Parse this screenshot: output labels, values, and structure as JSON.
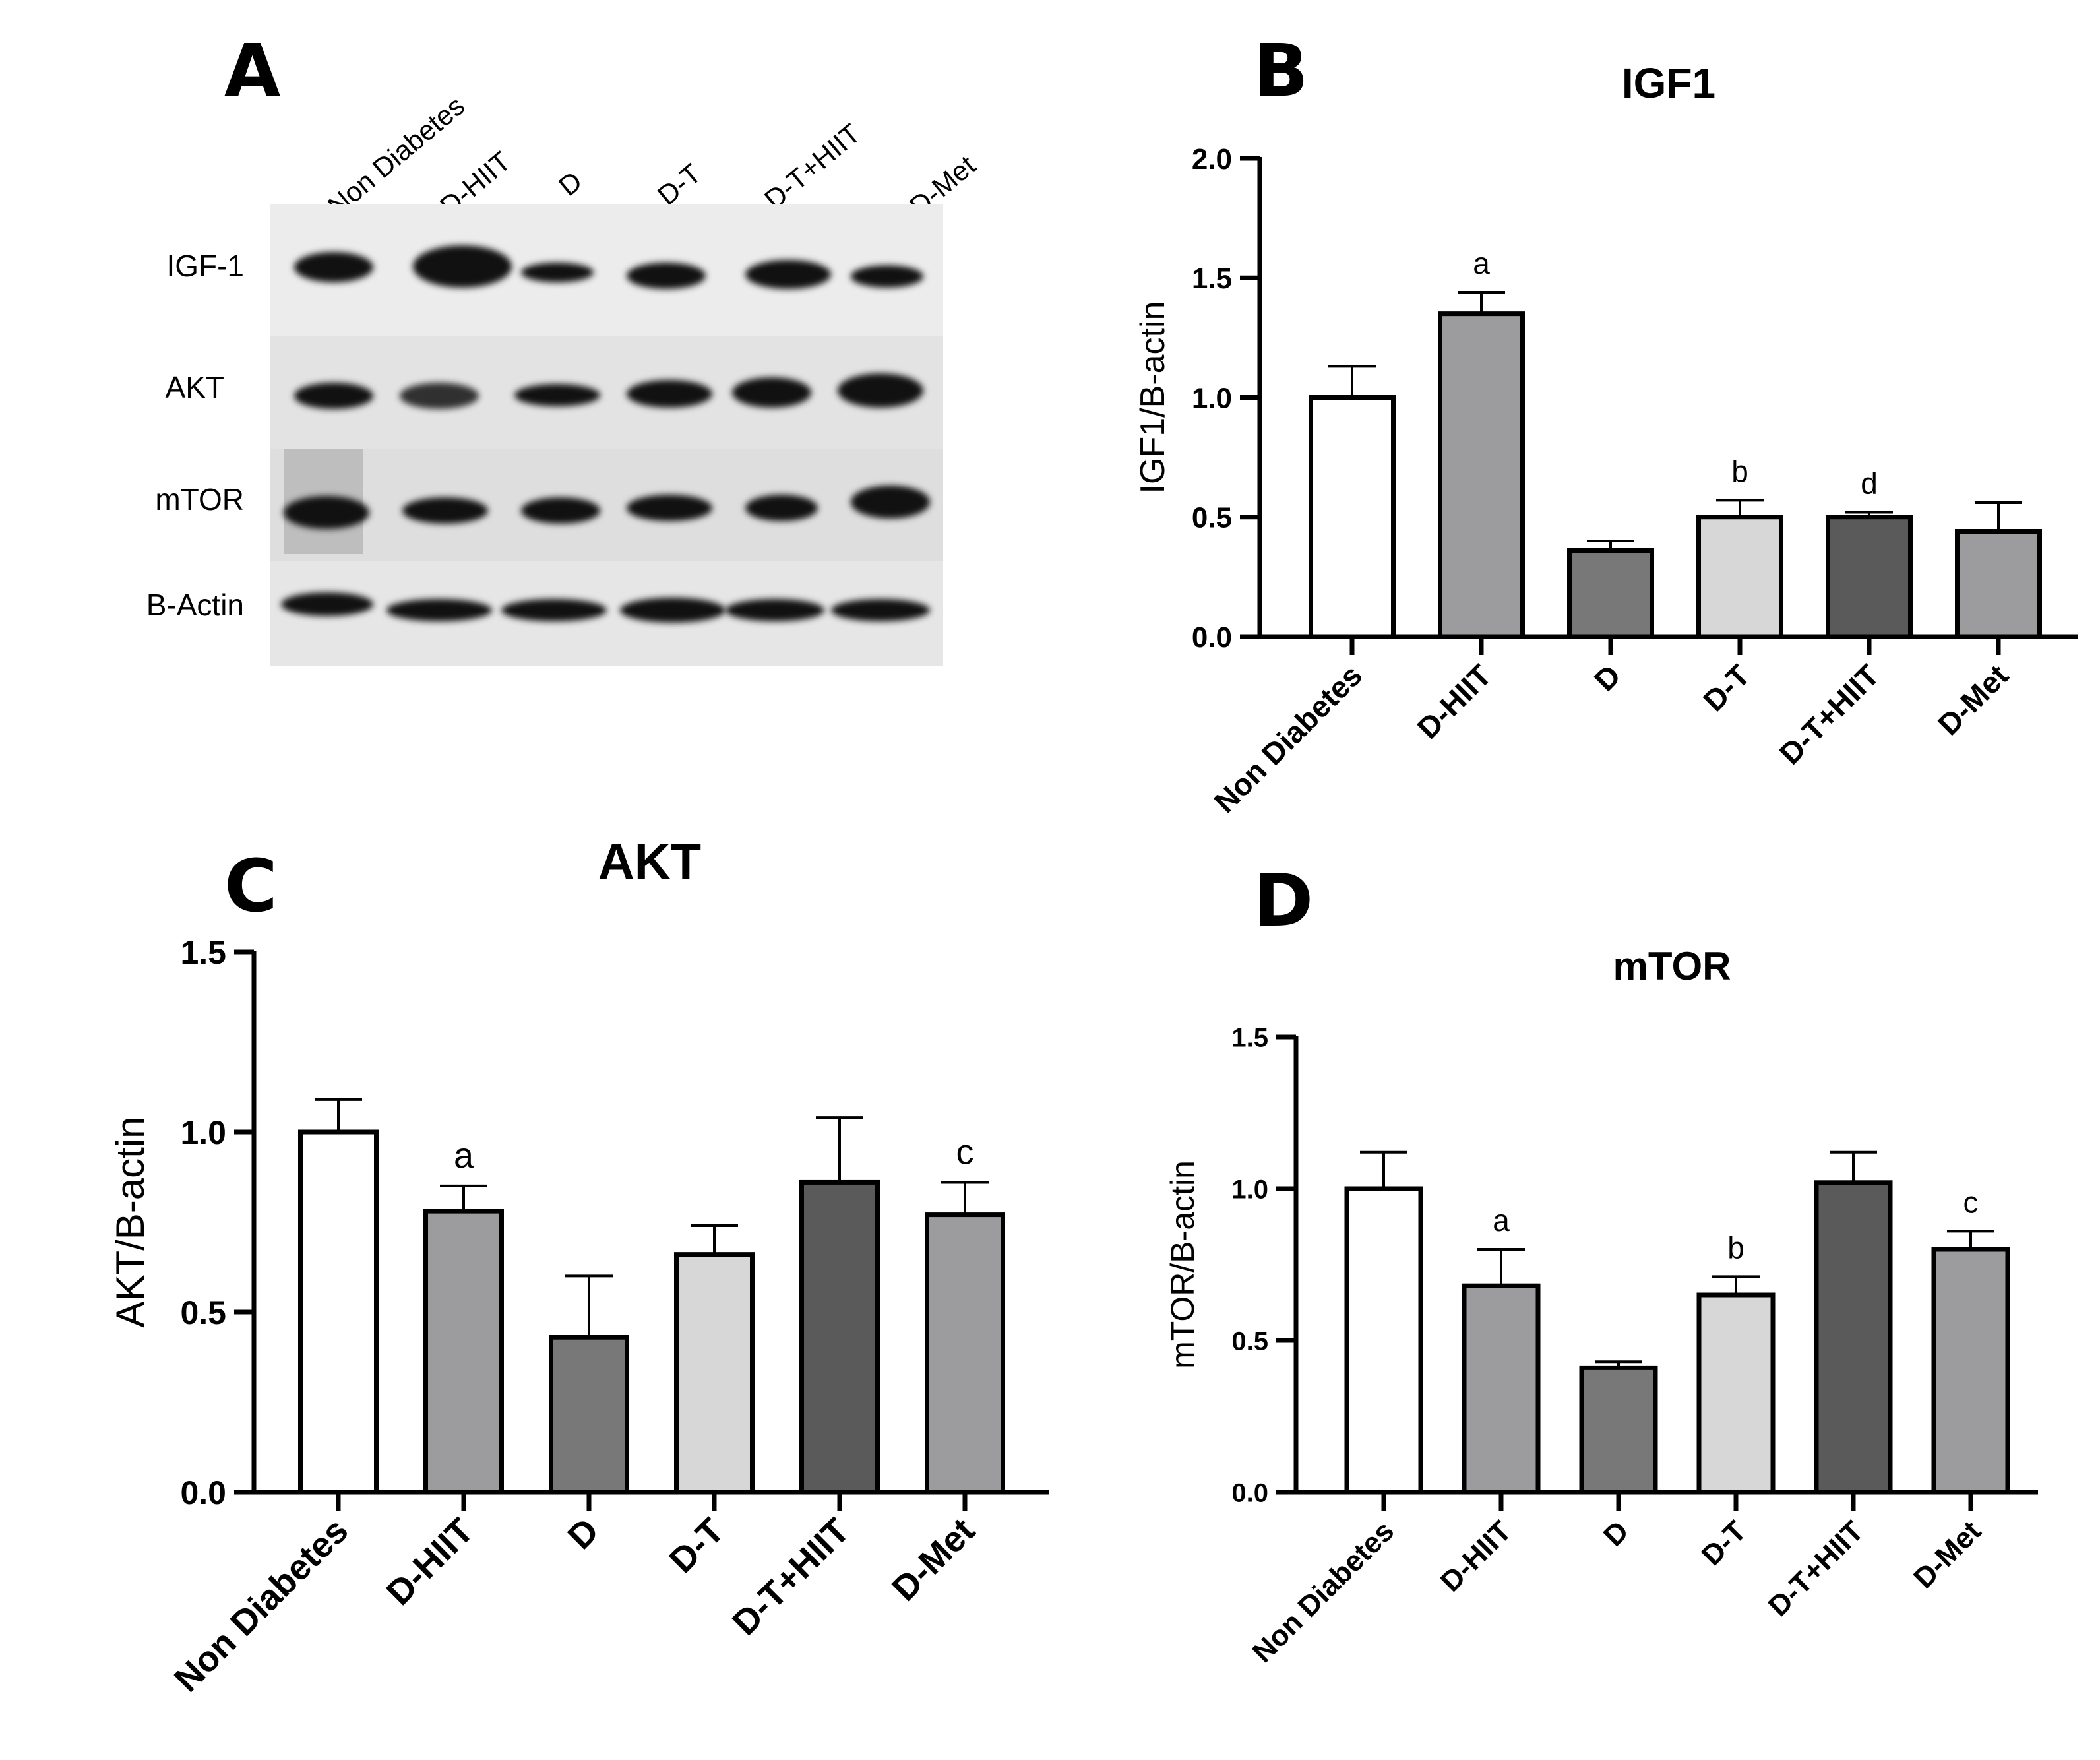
{
  "panel_letters": {
    "a": "A",
    "b": "B",
    "c": "C",
    "d": "D"
  },
  "blot": {
    "lanes": [
      "Non Diabetes",
      "D-HIIT",
      "D",
      "D-T",
      "D-T+HIIT",
      "D-Met"
    ],
    "rows": [
      "IGF-1",
      "AKT",
      "mTOR",
      "B-Actin"
    ],
    "background": "#e7e7e7",
    "band_color": "#111111"
  },
  "chart_data": [
    {
      "id": "B",
      "type": "bar",
      "title": "IGF1",
      "xlabel": "",
      "ylabel": "IGF1/B-actin",
      "ylim": [
        0,
        2.0
      ],
      "yticks": [
        0.0,
        0.5,
        1.0,
        1.5,
        2.0
      ],
      "ytick_labels": [
        "0.0",
        "0.5",
        "1.0",
        "1.5",
        "2.0"
      ],
      "categories": [
        "Non Diabetes",
        "D-HIIT",
        "D",
        "D-T",
        "D-T+HIIT",
        "D-Met"
      ],
      "values": [
        1.0,
        1.35,
        0.36,
        0.5,
        0.5,
        0.44
      ],
      "errors": [
        0.13,
        0.09,
        0.04,
        0.07,
        0.02,
        0.12
      ],
      "annotations": [
        "",
        "a",
        "",
        "b",
        "d",
        ""
      ],
      "colors": [
        "#ffffff",
        "#9c9c9e",
        "#787878",
        "#d7d7d7",
        "#5a5a5a",
        "#9c9c9e"
      ]
    },
    {
      "id": "C",
      "type": "bar",
      "title": "AKT",
      "xlabel": "",
      "ylabel": "AKT/B-actin",
      "ylim": [
        0,
        1.5
      ],
      "yticks": [
        0.0,
        0.5,
        1.0,
        1.5
      ],
      "ytick_labels": [
        "0.0",
        "0.5",
        "1.0",
        "1.5"
      ],
      "categories": [
        "Non Diabetes",
        "D-HIIT",
        "D",
        "D-T",
        "D-T+HIIT",
        "D-Met"
      ],
      "values": [
        1.0,
        0.78,
        0.43,
        0.66,
        0.86,
        0.77
      ],
      "errors": [
        0.09,
        0.07,
        0.17,
        0.08,
        0.18,
        0.09
      ],
      "annotations": [
        "",
        "a",
        "",
        "",
        "",
        "c"
      ],
      "colors": [
        "#ffffff",
        "#9c9c9e",
        "#787878",
        "#d7d7d7",
        "#5a5a5a",
        "#9c9c9e"
      ]
    },
    {
      "id": "D",
      "type": "bar",
      "title": "mTOR",
      "xlabel": "",
      "ylabel": "mTOR/B-actin",
      "ylim": [
        0,
        1.5
      ],
      "yticks": [
        0.0,
        0.5,
        1.0,
        1.5
      ],
      "ytick_labels": [
        "0.0",
        "0.5",
        "1.0",
        "1.5"
      ],
      "categories": [
        "Non Diabetes",
        "D-HIIT",
        "D",
        "D-T",
        "D-T+HIIT",
        "D-Met"
      ],
      "values": [
        1.0,
        0.68,
        0.41,
        0.65,
        1.02,
        0.8
      ],
      "errors": [
        0.12,
        0.12,
        0.02,
        0.06,
        0.1,
        0.06
      ],
      "annotations": [
        "",
        "a",
        "",
        "b",
        "",
        "c"
      ],
      "colors": [
        "#ffffff",
        "#9c9c9e",
        "#787878",
        "#d7d7d7",
        "#5a5a5a",
        "#9c9c9e"
      ]
    }
  ]
}
